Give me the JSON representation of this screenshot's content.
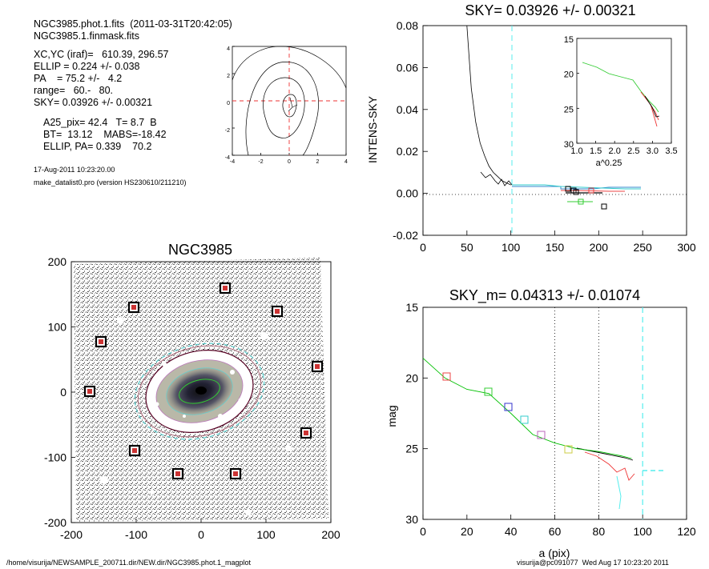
{
  "header": {
    "line1": "NGC3985.phot.1.fits  (2011-03-31T20:42:05)",
    "line2": "NGC3985.1.finmask.fits",
    "line3": "XC,YC (iraf)=   610.39, 296.57",
    "line4": "ELLIP = 0.224 +/- 0.038",
    "line5": "PA    = 75.2 +/-   4.2",
    "line6": "range=   60.-   80.",
    "line7": "SKY= 0.03926 +/- 0.00321",
    "line8": "A25_pix= 42.4   T= 8.7  B",
    "line9": "BT=  13.12    MABS=-18.42",
    "line10": "ELLIP, PA= 0.339    70.2",
    "date": "17-Aug-2011 10:23:20.00",
    "program": "make_datalist0.pro (version HS230610/211210)"
  },
  "footer": {
    "path": "/home/visurija/NEWSAMPLE_200711.dir/NEW.dir/NGC3985.phot.1_magplot",
    "user": "visurija@pc091077  Wed Aug 17 10:23:20 2011"
  },
  "chart_data": [
    {
      "type": "line",
      "panel": "contour-inset",
      "xlim": [
        -4,
        4
      ],
      "ylim": [
        -4,
        4
      ],
      "xticks": [
        "-4",
        "-2",
        "0",
        "2",
        "4"
      ],
      "yticks": [
        "-4",
        "-2",
        "0",
        "2",
        "4"
      ]
    },
    {
      "type": "line",
      "panel": "sky-profile",
      "title": "SKY= 0.03926 +/- 0.00321",
      "ylabel": "INTENS-SKY",
      "xlim": [
        0,
        300
      ],
      "ylim": [
        -0.02,
        0.08
      ],
      "xticks": [
        "0",
        "50",
        "100",
        "150",
        "200",
        "250",
        "300"
      ],
      "yticks": [
        "-0.02",
        "0.00",
        "0.02",
        "0.04",
        "0.06",
        "0.08"
      ],
      "series": [
        {
          "color": "#000000",
          "x": [
            50,
            55,
            60,
            65,
            70,
            75,
            80,
            85,
            90,
            95,
            100
          ],
          "y": [
            0.08,
            0.05,
            0.034,
            0.024,
            0.018,
            0.013,
            0.01,
            0.008,
            0.006,
            0.005,
            0.004
          ]
        }
      ],
      "inset": {
        "xlim": [
          1.0,
          3.5
        ],
        "ylim": [
          30,
          15
        ],
        "xlabel": "a^0.25",
        "xticks": [
          "1.0",
          "1.5",
          "2.0",
          "2.5",
          "3.0",
          "3.5"
        ],
        "yticks": [
          "15",
          "20",
          "25",
          "30"
        ]
      }
    },
    {
      "type": "scatter",
      "panel": "image",
      "title": "NGC3985",
      "xlim": [
        -200,
        200
      ],
      "ylim": [
        -200,
        200
      ],
      "xticks": [
        "-200",
        "-100",
        "0",
        "100",
        "200"
      ],
      "yticks": [
        "-200",
        "-100",
        "0",
        "100",
        "200"
      ]
    },
    {
      "type": "line",
      "panel": "mag-profile",
      "title": "SKY_m=  0.04313 +/- 0.01074",
      "xlabel": "a (pix)",
      "ylabel": "mag",
      "xlim": [
        0,
        120
      ],
      "ylim": [
        30,
        15
      ],
      "xticks": [
        "0",
        "20",
        "40",
        "60",
        "80",
        "100",
        "120"
      ],
      "yticks": [
        "15",
        "20",
        "25",
        "30"
      ],
      "series": [
        {
          "color": "#00c000",
          "x": [
            0,
            10,
            20,
            30,
            40,
            50,
            60,
            70,
            80,
            90,
            95
          ],
          "y": [
            18.6,
            20.0,
            20.8,
            21.1,
            22.5,
            24.0,
            24.6,
            25.0,
            25.2,
            25.5,
            25.7
          ]
        }
      ],
      "vlines": [
        60,
        80,
        100
      ]
    }
  ]
}
